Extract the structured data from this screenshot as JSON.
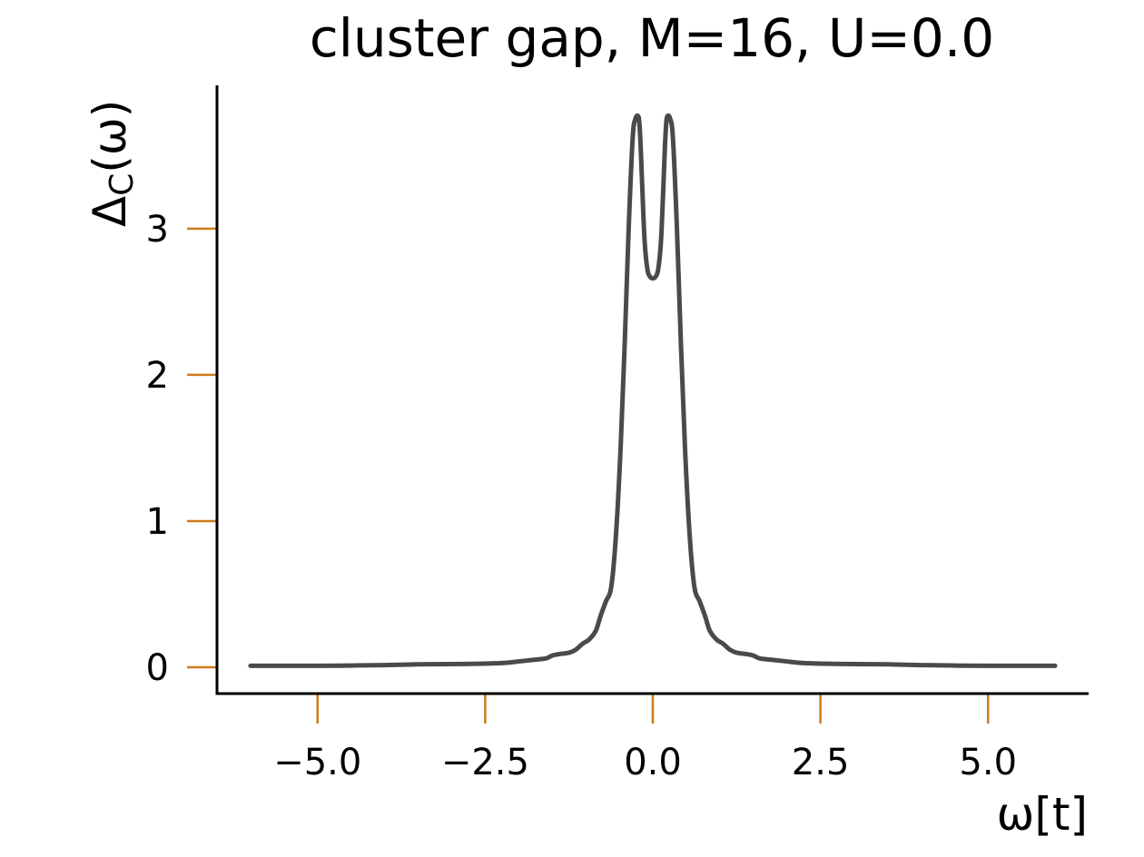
{
  "chart_data": {
    "type": "line",
    "title": "cluster gap, M=16, U=0.0",
    "xlabel": "ω[t]",
    "ylabel_main": "Δ",
    "ylabel_sub": "C",
    "ylabel_tail": "(ω)",
    "xlim": [
      -6.5,
      6.5
    ],
    "ylim": [
      -0.18,
      3.98
    ],
    "xticks": [
      -5.0,
      -2.5,
      0.0,
      2.5,
      5.0
    ],
    "xtick_labels": [
      "−5.0",
      "−2.5",
      "0.0",
      "2.5",
      "5.0"
    ],
    "yticks": [
      0,
      1,
      2,
      3
    ],
    "ytick_labels": [
      "0",
      "1",
      "2",
      "3"
    ],
    "grid": false,
    "colors": {
      "line": "#4a4a4a",
      "ticks": "#d07a1c",
      "axes": "#000000"
    },
    "series": [
      {
        "x": [
          -6.0,
          -5.0,
          -4.5,
          -4.0,
          -3.5,
          -3.0,
          -2.5,
          -2.2,
          -2.0,
          -1.8,
          -1.6,
          -1.5,
          -1.4,
          -1.25,
          -1.15,
          -1.05,
          -0.95,
          -0.85,
          -0.78,
          -0.7,
          -0.62,
          -0.55,
          -0.48,
          -0.42,
          -0.36,
          -0.3,
          -0.26,
          -0.22,
          -0.2,
          -0.18,
          -0.15,
          -0.12,
          -0.08,
          -0.04,
          0.0,
          0.04,
          0.08,
          0.12,
          0.15,
          0.18,
          0.2,
          0.22,
          0.26,
          0.3,
          0.36,
          0.42,
          0.48,
          0.55,
          0.62,
          0.7,
          0.78,
          0.85,
          0.95,
          1.05,
          1.15,
          1.25,
          1.4,
          1.5,
          1.6,
          1.8,
          2.0,
          2.2,
          2.5,
          3.0,
          3.5,
          4.0,
          4.5,
          5.0,
          6.0
        ],
        "y": [
          0.01,
          0.01,
          0.012,
          0.015,
          0.02,
          0.022,
          0.025,
          0.03,
          0.04,
          0.05,
          0.06,
          0.08,
          0.09,
          0.1,
          0.12,
          0.16,
          0.19,
          0.25,
          0.35,
          0.45,
          0.55,
          0.9,
          1.5,
          2.2,
          3.0,
          3.62,
          3.75,
          3.77,
          3.72,
          3.55,
          3.2,
          2.9,
          2.72,
          2.67,
          2.66,
          2.67,
          2.72,
          2.9,
          3.2,
          3.55,
          3.72,
          3.77,
          3.75,
          3.62,
          3.0,
          2.2,
          1.5,
          0.9,
          0.55,
          0.45,
          0.35,
          0.25,
          0.19,
          0.16,
          0.12,
          0.1,
          0.09,
          0.08,
          0.06,
          0.05,
          0.04,
          0.03,
          0.025,
          0.022,
          0.02,
          0.015,
          0.012,
          0.01,
          0.01
        ]
      }
    ]
  }
}
